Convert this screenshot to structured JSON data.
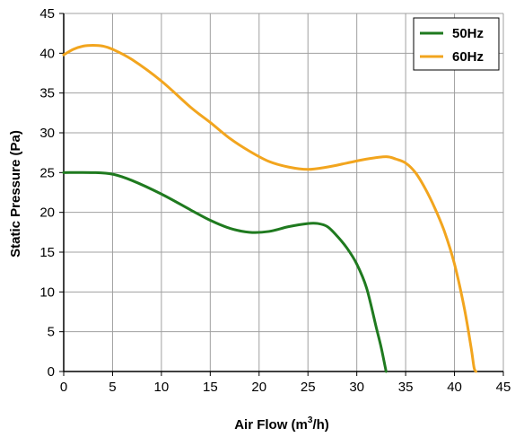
{
  "chart_data": {
    "type": "line",
    "xlabel_prefix": "Air Flow (m",
    "xlabel_sup": "3",
    "xlabel_suffix": "/h)",
    "ylabel": "Static Pressure (Pa)",
    "xlim": [
      0,
      45
    ],
    "ylim": [
      0,
      45
    ],
    "x_ticks": [
      0,
      5,
      10,
      15,
      20,
      25,
      30,
      35,
      40,
      45
    ],
    "y_ticks": [
      0,
      5,
      10,
      15,
      20,
      25,
      30,
      35,
      40,
      45
    ],
    "grid": true,
    "legend_position": "top-right",
    "series": [
      {
        "name": "50Hz",
        "color": "#1f7a1f",
        "points": [
          [
            0,
            25
          ],
          [
            3,
            25
          ],
          [
            5,
            24.8
          ],
          [
            7,
            24
          ],
          [
            10,
            22.3
          ],
          [
            13,
            20.3
          ],
          [
            15,
            19
          ],
          [
            17,
            18
          ],
          [
            19,
            17.5
          ],
          [
            21,
            17.6
          ],
          [
            23,
            18.2
          ],
          [
            25,
            18.6
          ],
          [
            26,
            18.6
          ],
          [
            27,
            18.2
          ],
          [
            28,
            17
          ],
          [
            29,
            15.5
          ],
          [
            30,
            13.5
          ],
          [
            31,
            10.5
          ],
          [
            32,
            5.5
          ],
          [
            32.5,
            3
          ],
          [
            33,
            0
          ]
        ]
      },
      {
        "name": "60Hz",
        "color": "#f2a51e",
        "points": [
          [
            0,
            39.8
          ],
          [
            1,
            40.5
          ],
          [
            2,
            40.9
          ],
          [
            3,
            41
          ],
          [
            4,
            40.9
          ],
          [
            5,
            40.5
          ],
          [
            7,
            39.2
          ],
          [
            10,
            36.5
          ],
          [
            13,
            33.2
          ],
          [
            15,
            31.3
          ],
          [
            17,
            29.3
          ],
          [
            19,
            27.7
          ],
          [
            21,
            26.4
          ],
          [
            23,
            25.7
          ],
          [
            25,
            25.4
          ],
          [
            27,
            25.7
          ],
          [
            29,
            26.2
          ],
          [
            31,
            26.7
          ],
          [
            33,
            27
          ],
          [
            34,
            26.7
          ],
          [
            35,
            26.2
          ],
          [
            36,
            25
          ],
          [
            37,
            23
          ],
          [
            38,
            20.5
          ],
          [
            39,
            17.5
          ],
          [
            40,
            13.5
          ],
          [
            41,
            8
          ],
          [
            41.7,
            3
          ],
          [
            42,
            0.5
          ],
          [
            42.2,
            0
          ]
        ]
      }
    ]
  }
}
